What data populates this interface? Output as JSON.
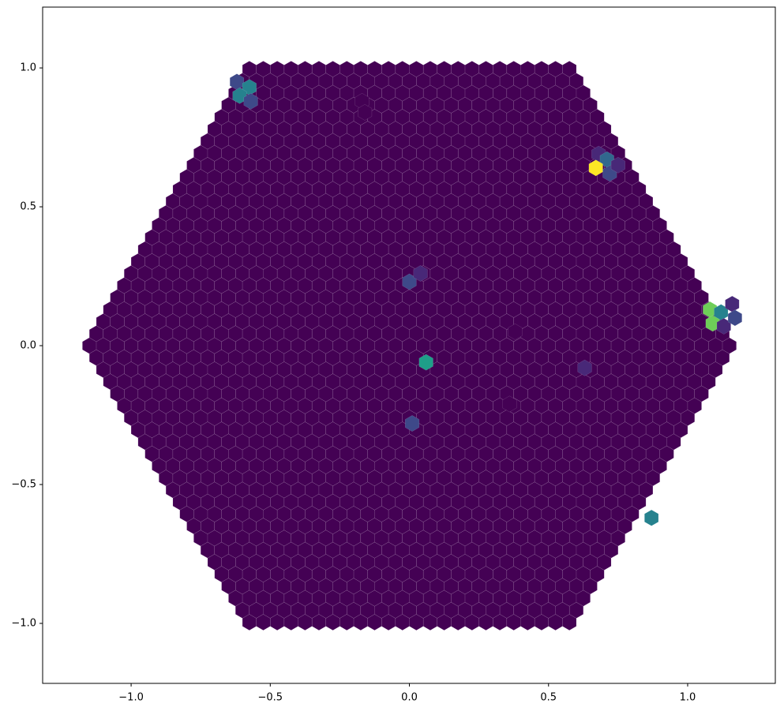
{
  "chart_data": {
    "type": "hexbin",
    "x": [
      -0.62,
      -0.575,
      -0.61,
      -0.57,
      -0.17,
      -0.16,
      0.68,
      0.71,
      0.67,
      0.72,
      0.75,
      0.0,
      0.04,
      1.08,
      1.12,
      1.09,
      1.13,
      1.16,
      1.17,
      0.06,
      0.01,
      0.87,
      0.38,
      0.63,
      0.36
    ],
    "y": [
      0.95,
      0.93,
      0.9,
      0.88,
      0.88,
      0.84,
      0.69,
      0.67,
      0.64,
      0.62,
      0.65,
      0.23,
      0.26,
      0.13,
      0.12,
      0.08,
      0.07,
      0.15,
      0.1,
      -0.06,
      -0.28,
      -0.62,
      0.05,
      -0.08,
      -0.21
    ],
    "values": [
      0.2,
      0.45,
      0.4,
      0.2,
      0.05,
      0.05,
      0.15,
      0.3,
      1.0,
      0.2,
      0.1,
      0.25,
      0.12,
      0.8,
      0.45,
      0.75,
      0.15,
      0.15,
      0.2,
      0.5,
      0.25,
      0.45,
      0.05,
      0.07,
      0.05
    ],
    "colormap": "viridis",
    "xlim": [
      -1.318,
      1.315
    ],
    "ylim": [
      -1.216,
      1.219
    ],
    "xticks": [
      {
        "value": -1.0,
        "label": "−1.0"
      },
      {
        "value": -0.5,
        "label": "−0.5"
      },
      {
        "value": 0.0,
        "label": "0.0"
      },
      {
        "value": 0.5,
        "label": "0.5"
      },
      {
        "value": 1.0,
        "label": "1.0"
      }
    ],
    "yticks": [
      {
        "value": -1.0,
        "label": "−1.0"
      },
      {
        "value": -0.5,
        "label": "−0.5"
      },
      {
        "value": 0.0,
        "label": "0.0"
      },
      {
        "value": 0.5,
        "label": "0.5"
      },
      {
        "value": 1.0,
        "label": "1.0"
      }
    ],
    "grid": false
  }
}
